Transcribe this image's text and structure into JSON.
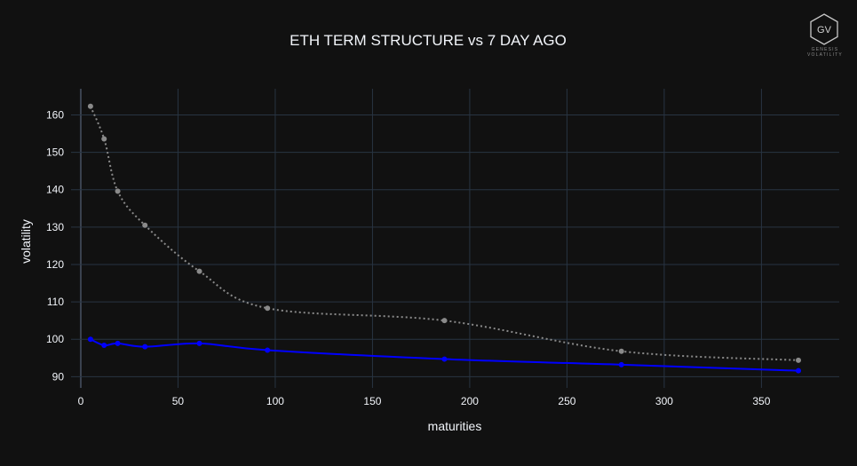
{
  "chart_data": {
    "type": "line",
    "title": "ETH TERM STRUCTURE vs 7 DAY AGO",
    "xlabel": "maturities",
    "ylabel": "volatility",
    "xlim": [
      -5,
      390
    ],
    "ylim": [
      87,
      167
    ],
    "x_ticks": [
      0,
      50,
      100,
      150,
      200,
      250,
      300,
      350
    ],
    "y_ticks": [
      90,
      100,
      110,
      120,
      130,
      140,
      150,
      160
    ],
    "grid": true,
    "series": [
      {
        "x": [
          5,
          12,
          19,
          33,
          61,
          96,
          187,
          278,
          369
        ],
        "values": [
          162.3,
          153.6,
          139.6,
          130.5,
          118.2,
          108.3,
          105.0,
          96.8,
          94.4
        ],
        "color": "#8a8a8a",
        "dash": "dotted"
      },
      {
        "x": [
          5,
          12,
          19,
          33,
          61,
          96,
          187,
          278,
          369
        ],
        "values": [
          100.0,
          98.4,
          98.9,
          98.0,
          98.9,
          97.1,
          94.7,
          93.2,
          91.6
        ],
        "color": "#0000ff",
        "dash": "solid"
      }
    ]
  },
  "logo": {
    "mark": "GV",
    "line1": "GENESIS",
    "line2": "VOLATILITY"
  }
}
